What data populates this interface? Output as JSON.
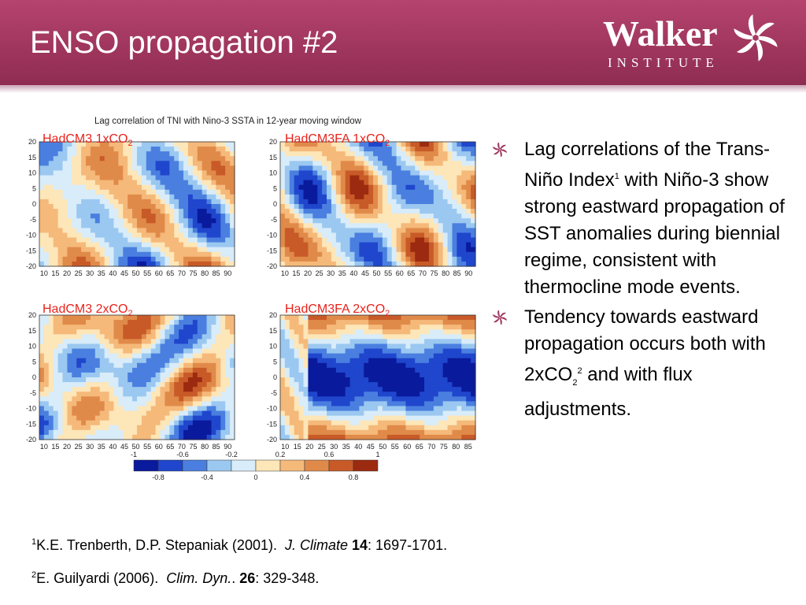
{
  "slide": {
    "title": "ENSO propagation #2",
    "logo": {
      "word": "Walker",
      "sub": "INSTITUTE"
    },
    "colors": {
      "header": "#a0365e",
      "label_red": "#e8231c"
    }
  },
  "chart_data": {
    "type": "heatmap",
    "title": "Lag correlation of TNI with Nino-3 SSTA in 12-year moving window",
    "panels": [
      {
        "label_main": "HadCM3 1xCO",
        "label_sub": "2",
        "x_ticks": [
          10,
          15,
          20,
          25,
          30,
          35,
          40,
          45,
          50,
          55,
          60,
          65,
          70,
          75,
          80,
          85,
          90
        ],
        "x_range": [
          8,
          93
        ]
      },
      {
        "label_main": "HadCM3FA 1xCO",
        "label_sub": "2",
        "x_ticks": [
          10,
          15,
          20,
          25,
          30,
          35,
          40,
          45,
          50,
          55,
          60,
          65,
          70,
          75,
          80,
          85,
          90
        ],
        "x_range": [
          8,
          93
        ]
      },
      {
        "label_main": "HadCM3 2xCO",
        "label_sub": "2",
        "x_ticks": [
          10,
          15,
          20,
          25,
          30,
          35,
          40,
          45,
          50,
          55,
          60,
          65,
          70,
          75,
          80,
          85,
          90
        ],
        "x_range": [
          8,
          93
        ]
      },
      {
        "label_main": "HadCM3FA 2xCO",
        "label_sub": "2",
        "x_ticks": [
          10,
          15,
          20,
          25,
          30,
          35,
          40,
          45,
          50,
          55,
          60,
          65,
          70,
          75,
          80,
          85
        ],
        "x_range": [
          8,
          88
        ]
      }
    ],
    "y_ticks": [
      20,
      15,
      10,
      5,
      0,
      -5,
      -10,
      -15,
      -20
    ],
    "y_range": [
      -20,
      20
    ],
    "colorbar": {
      "colors": [
        "#0a1a9c",
        "#1f46cc",
        "#4a7fe0",
        "#9bc8f0",
        "#d8ecfa",
        "#fde6b8",
        "#f5b97a",
        "#e08a4a",
        "#c85a28",
        "#9c2a10"
      ],
      "top_ticks": [
        "-1",
        "-0.6",
        "-0.2",
        "0.2",
        "0.6",
        "1"
      ],
      "bottom_ticks": [
        "-0.8",
        "-0.4",
        "0",
        "0.4",
        "0.8"
      ]
    }
  },
  "bullets": [
    {
      "t1": "Lag correlations of the Trans-Niño Index",
      "sup1": "1",
      "t2": " with Niño-3 show strong eastward propagation of SST anomalies during biennial regime, consistent with thermocline mode events."
    },
    {
      "t1": "Tendency towards eastward propagation occurs both with 2xCO",
      "sub1": "2",
      "sup1": "2",
      "t2": " and with flux adjustments."
    }
  ],
  "references": [
    {
      "num": "1",
      "authors": "K.E. Trenberth, D.P. Stepaniak (2001).",
      "journal": "J. Climate",
      "volume": "14",
      "pages": ": 1697-1701."
    },
    {
      "num": "2",
      "authors": "E. Guilyardi (2006).",
      "journal": "Clim. Dyn.",
      "volume": "26",
      "pages": ": 329-348."
    }
  ]
}
